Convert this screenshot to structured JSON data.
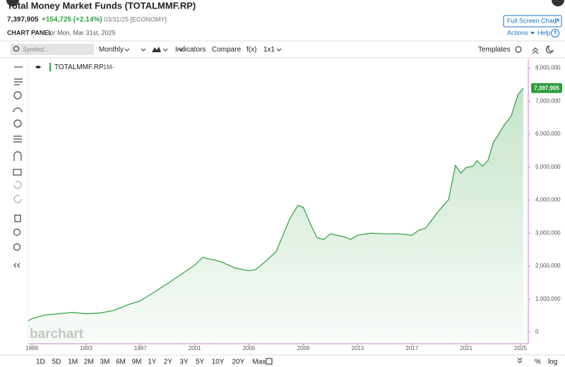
{
  "header": {
    "title": "Total Money Market Funds (TOTALMMF.RP)",
    "price": "7,397,905",
    "change": "+154,725 (+2.14%)",
    "date": "03/31/25 [ECONOMY]",
    "panel_label": "CHART PANEL",
    "panel_date": "for Mon, Mar 31st, 2025",
    "full_screen": "Full Screen Chart",
    "actions": "Actions",
    "help": "Help",
    "help_icon": "?"
  },
  "toolbar": {
    "symbol_placeholder": "Symbol...",
    "period": "Monthly",
    "indicators": "Indicators",
    "compare": "Compare",
    "fx": "f(x)",
    "layout": "1x1",
    "templates": "Templates"
  },
  "chart_data": {
    "type": "area",
    "series": [
      {
        "name": "TOTALMMF.RP",
        "interval": "-1M-",
        "color": "#2e9e3e",
        "x": [
          1988.74,
          1989,
          1990,
          1991,
          1992,
          1993,
          1994,
          1995,
          1996,
          1997,
          1998,
          1999,
          2000,
          2001,
          2001.6,
          2002,
          2002.5,
          2003,
          2004,
          2005,
          2005.5,
          2006,
          2007,
          2008,
          2008.6,
          2009,
          2009.5,
          2010,
          2010.5,
          2011,
          2012,
          2012.5,
          2013,
          2014,
          2015,
          2016,
          2017,
          2017.5,
          2018,
          2019,
          2019.7,
          2020.2,
          2020.6,
          2021,
          2021.5,
          2021.8,
          2022.2,
          2022.6,
          2023,
          2023.8,
          2024.3,
          2024.8,
          2025.2
        ],
        "values": [
          345000,
          410000,
          520000,
          560000,
          600000,
          560000,
          580000,
          650000,
          820000,
          950000,
          1210000,
          1470000,
          1750000,
          2030000,
          2270000,
          2220000,
          2180000,
          2120000,
          1940000,
          1860000,
          1900000,
          2070000,
          2440000,
          3430000,
          3840000,
          3780000,
          3300000,
          2870000,
          2810000,
          2980000,
          2890000,
          2810000,
          2940000,
          3000000,
          2980000,
          2980000,
          2940000,
          3090000,
          3150000,
          3690000,
          4020000,
          5050000,
          4820000,
          4990000,
          5030000,
          5200000,
          5030000,
          5200000,
          5750000,
          6280000,
          6540000,
          7190000,
          7397905
        ],
        "value_labels": [
          null,
          null,
          null,
          null,
          null,
          null,
          null,
          null,
          null,
          null,
          null,
          null,
          null,
          null,
          null,
          null,
          null,
          null,
          null,
          null,
          null,
          null,
          null,
          null,
          null,
          null,
          null,
          null,
          null,
          null,
          null,
          null,
          null,
          null,
          null,
          null,
          null,
          null,
          null,
          null,
          null,
          null,
          null,
          null,
          null,
          null,
          null,
          null,
          null,
          null,
          null,
          null,
          "7,397,905"
        ]
      }
    ],
    "xlim": [
      1988.74,
      2025.57
    ],
    "xticks": [
      1989,
      1993,
      1997,
      2001,
      2005,
      2009,
      2013,
      2017,
      2021,
      2025
    ],
    "ylim": [
      -350000,
      8270000
    ],
    "yticks": [
      0,
      {
        "value": 1000000,
        "label": "1,000,000"
      },
      {
        "value": 2000000,
        "label": "2,000,000"
      },
      {
        "value": 3000000,
        "label": "3,000,000"
      },
      {
        "value": 4000000,
        "label": "4,000,000"
      },
      {
        "value": 5000000,
        "label": "5,000,000"
      },
      {
        "value": 6000000,
        "label": "6,000,000"
      },
      {
        "value": 7000000,
        "label": "7,000,000"
      },
      {
        "value": 8000000,
        "label": "8,000,000"
      }
    ],
    "grid": false
  },
  "watermark": "barchart",
  "ranges": [
    "1D",
    "5D",
    "1M",
    "2M",
    "3M",
    "6M",
    "9M",
    "1Y",
    "2Y",
    "3Y",
    "5Y",
    "10Y",
    "20Y",
    "Max"
  ],
  "scale_options": [
    "%",
    "log"
  ]
}
